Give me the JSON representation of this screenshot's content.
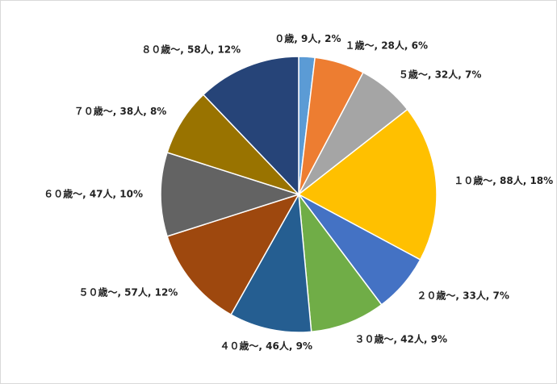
{
  "chart_data": {
    "type": "pie",
    "values": [
      9,
      28,
      32,
      88,
      33,
      42,
      46,
      57,
      47,
      38,
      58
    ],
    "value_labels": [
      "０歳, 9人, 2%",
      "１歳～, 28人, 6%",
      "５歳～, 32人, 7%",
      "１０歳～, 88人, 18%",
      "２０歳～, 33人, 7%",
      "３０歳～, 42人, 9%",
      "４０歳～, 46人, 9%",
      "５０歳～, 57人, 12%",
      "６０歳～, 47人, 10%",
      "７０歳～, 38人, 8%",
      "８０歳～, 58人, 12%"
    ],
    "colors": [
      "#5b9bd5",
      "#ed7d31",
      "#a5a5a5",
      "#ffc000",
      "#4472c4",
      "#70ad47",
      "#255e91",
      "#9e480e",
      "#636363",
      "#997300",
      "#264478"
    ]
  }
}
